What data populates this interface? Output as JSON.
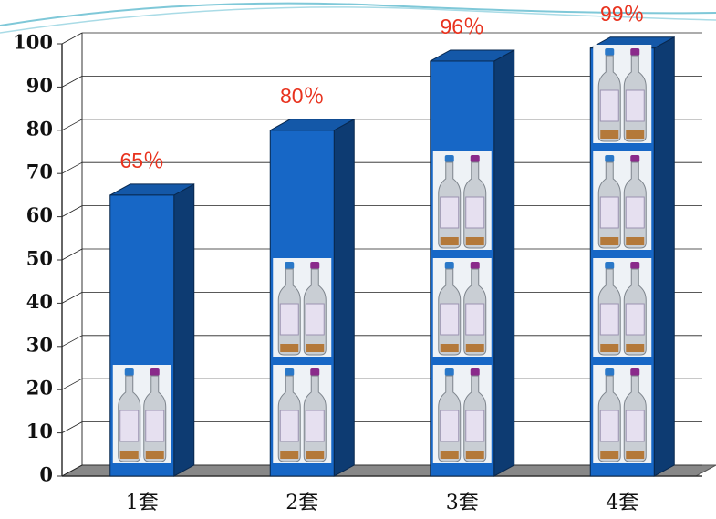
{
  "chart_data": {
    "type": "bar",
    "categories": [
      "1套",
      "2套",
      "3套",
      "4套"
    ],
    "values": [
      65,
      80,
      96,
      99
    ],
    "value_labels": [
      "65％",
      "80％",
      "96％",
      "99％"
    ],
    "color": "#1767c6",
    "label_color": "#e8321e",
    "ylim": [
      0,
      100
    ],
    "yticks": [
      0,
      10,
      20,
      30,
      40,
      50,
      60,
      70,
      80,
      90,
      100
    ],
    "grid": true
  }
}
